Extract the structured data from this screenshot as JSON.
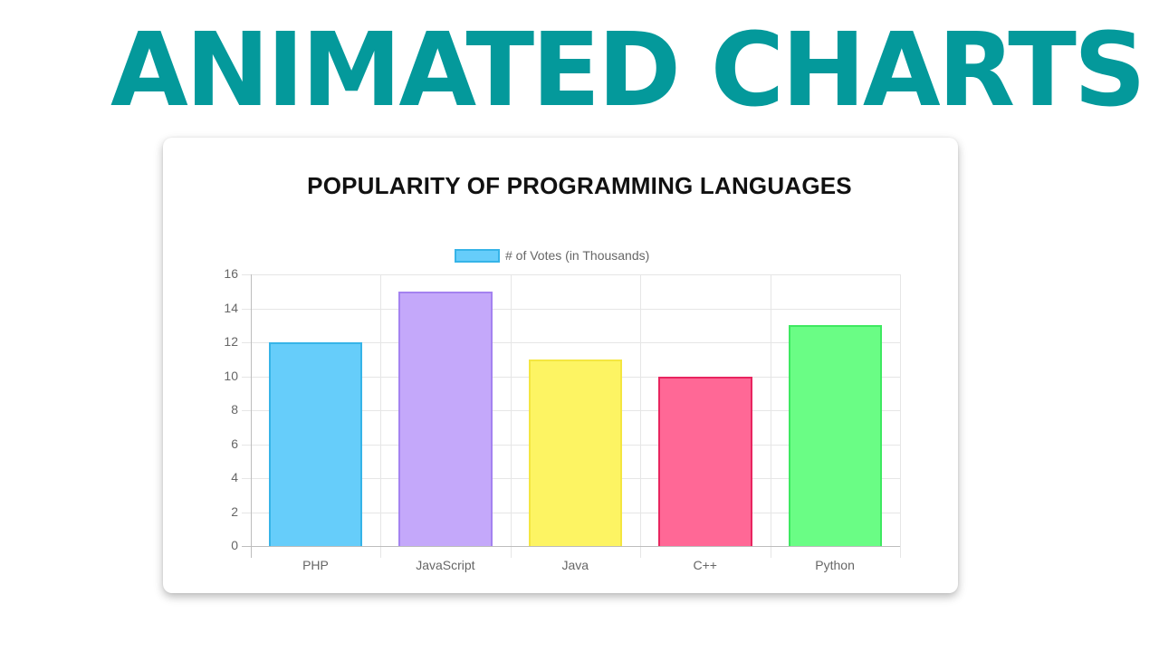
{
  "headline": "ANIMATED CHARTS",
  "colors": {
    "headline": "#04999b"
  },
  "chart_data": {
    "type": "bar",
    "title": "POPULARITY OF PROGRAMMING LANGUAGES",
    "categories": [
      "PHP",
      "JavaScript",
      "Java",
      "C++",
      "Python"
    ],
    "series": [
      {
        "name": "# of Votes (in Thousands)",
        "values": [
          12,
          15,
          11,
          10,
          13
        ]
      }
    ],
    "values": [
      12,
      15,
      11,
      10,
      13
    ],
    "bar_fill_colors": [
      "#66cdfa",
      "#c4a8fa",
      "#fdf463",
      "#ff6896",
      "#6afd85"
    ],
    "bar_border_colors": [
      "#36b4e8",
      "#a482f0",
      "#f4e640",
      "#e8255f",
      "#3ee960"
    ],
    "legend": {
      "label": "# of Votes (in Thousands)",
      "position": "top"
    },
    "xlabel": "",
    "ylabel": "",
    "ylim": [
      0,
      16
    ],
    "yticks": [
      0,
      2,
      4,
      6,
      8,
      10,
      12,
      14,
      16
    ],
    "grid": true
  }
}
